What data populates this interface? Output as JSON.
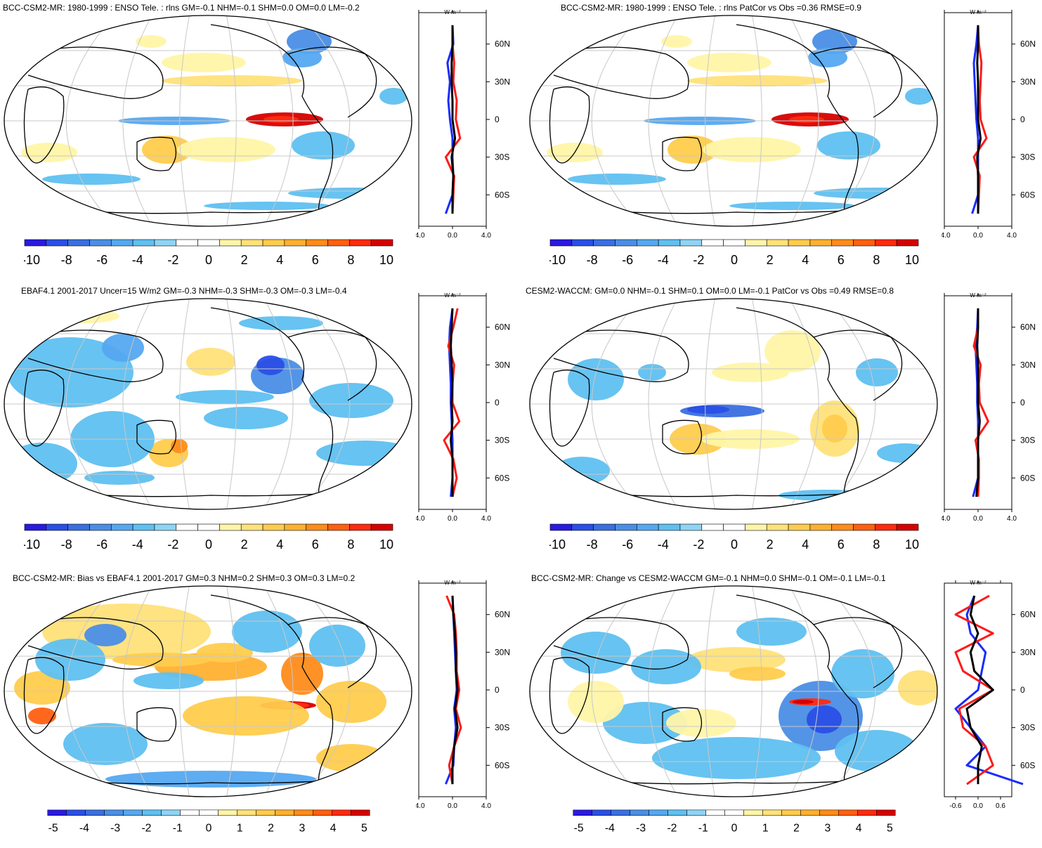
{
  "colors": [
    "#2a1ae0",
    "#2a4fe6",
    "#3a6fe0",
    "#4a8ee6",
    "#55a8f0",
    "#5fc0f0",
    "#8ed4f5",
    "#ffffff",
    "#ffffff",
    "#fff5a8",
    "#ffe27a",
    "#ffcc4d",
    "#ffb030",
    "#ff8c1a",
    "#ff6010",
    "#ff2a10",
    "#d60000"
  ],
  "panels": [
    {
      "id": "p1",
      "title": "BCC-CSM2-MR: 1980-1999 : ENSO Tele. : rlns GM=-0.1 NHM=-0.1 SHM=0.0 OM=0.0 LM=-0.2",
      "cbar_labels": [
        "-10",
        "-8",
        "-6",
        "-4",
        "-2",
        "0",
        "2",
        "4",
        "6",
        "8",
        "10"
      ],
      "x_ticks": [
        "-4.0",
        "0.0",
        "4.0"
      ],
      "lat_labels": [
        "60N",
        "30N",
        "0",
        "30S",
        "60S"
      ],
      "unit": "W m⁻²"
    },
    {
      "id": "p2",
      "title": "BCC-CSM2-MR: 1980-1999 : ENSO Tele. : rlns PatCor vs Obs =0.36 RMSE=0.9",
      "cbar_labels": [
        "-10",
        "-8",
        "-6",
        "-4",
        "-2",
        "0",
        "2",
        "4",
        "6",
        "8",
        "10"
      ],
      "x_ticks": [
        "-4.0",
        "0.0",
        "4.0"
      ],
      "lat_labels": [
        "60N",
        "30N",
        "0",
        "30S",
        "60S"
      ],
      "unit": "W m⁻²"
    },
    {
      "id": "p3",
      "title": "EBAF4.1 2001-2017 Uncer=15 W/m2 GM=-0.3 NHM=-0.3 SHM=-0.3 OM=-0.3 LM=-0.4",
      "cbar_labels": [
        "-10",
        "-8",
        "-6",
        "-4",
        "-2",
        "0",
        "2",
        "4",
        "6",
        "8",
        "10"
      ],
      "x_ticks": [
        "-4.0",
        "0.0",
        "4.0"
      ],
      "lat_labels": [
        "60N",
        "30N",
        "0",
        "30S",
        "60S"
      ],
      "unit": "W m⁻²"
    },
    {
      "id": "p4",
      "title": "CESM2-WACCM: GM=0.0 NHM=-0.1 SHM=0.1 OM=0.0 LM=-0.1 PatCor vs Obs =0.49 RMSE=0.8",
      "cbar_labels": [
        "-10",
        "-8",
        "-6",
        "-4",
        "-2",
        "0",
        "2",
        "4",
        "6",
        "8",
        "10"
      ],
      "x_ticks": [
        "-4.0",
        "0.0",
        "4.0"
      ],
      "lat_labels": [
        "60N",
        "30N",
        "0",
        "30S",
        "60S"
      ],
      "unit": "W m⁻²"
    },
    {
      "id": "p5",
      "title": "BCC-CSM2-MR: Bias vs EBAF4.1 2001-2017 GM=0.3 NHM=0.2 SHM=0.3 OM=0.3 LM=0.2",
      "cbar_labels": [
        "-5",
        "-4",
        "-3",
        "-2",
        "-1",
        "0",
        "1",
        "2",
        "3",
        "4",
        "5"
      ],
      "x_ticks": [
        "-4.0",
        "0.0",
        "4.0"
      ],
      "lat_labels": [
        "60N",
        "30N",
        "0",
        "30S",
        "60S"
      ],
      "unit": "W m⁻²"
    },
    {
      "id": "p6",
      "title": "BCC-CSM2-MR: Change vs CESM2-WACCM GM=-0.1 NHM=0.0 SHM=-0.1 OM=-0.1 LM=-0.1",
      "cbar_labels": [
        "-5",
        "-4",
        "-3",
        "-2",
        "-1",
        "0",
        "1",
        "2",
        "3",
        "4",
        "5"
      ],
      "x_ticks": [
        "-0.6",
        "0.0",
        "0.6"
      ],
      "lat_labels": [
        "60N",
        "30N",
        "0",
        "30S",
        "60S"
      ],
      "unit": "W m⁻²"
    }
  ],
  "chart_data": [
    {
      "type": "heatmap",
      "title": "BCC-CSM2-MR: 1980-1999 : ENSO Tele. : rlns GM=-0.1 NHM=-0.1 SHM=0.0 OM=0.0 LM=-0.2",
      "colorbar_range": [
        -10,
        10
      ],
      "zonal_mean": {
        "lat": [
          75,
          60,
          45,
          30,
          15,
          0,
          -15,
          -30,
          -45,
          -60,
          -75
        ],
        "xlim": [
          -4,
          4
        ],
        "series": [
          {
            "color": "blue",
            "values": [
              0,
              0.1,
              -0.6,
              -0.3,
              -0.5,
              -0.3,
              0,
              0,
              0.1,
              0,
              -0.8
            ]
          },
          {
            "color": "red",
            "values": [
              0,
              0,
              0.2,
              0.1,
              0.5,
              0.4,
              0.9,
              -0.8,
              0.2,
              0.1,
              0
            ]
          },
          {
            "color": "black",
            "values": [
              0,
              0,
              -0.1,
              -0.1,
              0,
              0,
              0.3,
              -0.1,
              0.1,
              0,
              0
            ]
          }
        ]
      }
    },
    {
      "type": "heatmap",
      "title": "BCC-CSM2-MR: 1980-1999 : ENSO Tele. : rlns PatCor vs Obs =0.36 RMSE=0.9",
      "colorbar_range": [
        -10,
        10
      ],
      "zonal_mean": {
        "lat": [
          75,
          60,
          45,
          30,
          15,
          0,
          -15,
          -30,
          -45,
          -60,
          -75
        ],
        "xlim": [
          -4,
          4
        ],
        "series": [
          {
            "color": "blue",
            "values": [
              0,
              -0.2,
              -0.5,
              -0.4,
              -0.3,
              -0.2,
              0,
              0,
              0,
              0,
              -0.7
            ]
          },
          {
            "color": "red",
            "values": [
              0,
              0.1,
              0.4,
              0.3,
              0.2,
              0.3,
              1.0,
              -0.5,
              0.2,
              0.1,
              0
            ]
          },
          {
            "color": "black",
            "values": [
              0,
              0,
              -0.1,
              0,
              0,
              0,
              0.3,
              -0.1,
              0,
              0,
              0
            ]
          }
        ]
      }
    },
    {
      "type": "heatmap",
      "title": "EBAF4.1 2001-2017 Uncer=15 W/m2 GM=-0.3 NHM=-0.3 SHM=-0.3 OM=-0.3 LM=-0.4",
      "colorbar_range": [
        -10,
        10
      ],
      "zonal_mean": {
        "lat": [
          75,
          60,
          45,
          30,
          15,
          0,
          -15,
          -30,
          -45,
          -60,
          -75
        ],
        "xlim": [
          -4,
          4
        ],
        "series": [
          {
            "color": "blue",
            "values": [
              0,
              -0.3,
              -0.4,
              -0.3,
              -0.2,
              -0.2,
              -0.1,
              0,
              0,
              0,
              -0.2
            ]
          },
          {
            "color": "red",
            "values": [
              0.6,
              0.1,
              -0.5,
              0.2,
              0,
              0,
              0.8,
              -1.0,
              0.1,
              0.5,
              0
            ]
          },
          {
            "color": "black",
            "values": [
              0,
              -0.1,
              -0.2,
              -0.1,
              0,
              -0.1,
              0,
              -0.2,
              0,
              0,
              0
            ]
          }
        ]
      }
    },
    {
      "type": "heatmap",
      "title": "CESM2-WACCM: GM=0.0 NHM=-0.1 SHM=0.1 OM=0.0 LM=-0.1 PatCor vs Obs =0.49 RMSE=0.8",
      "colorbar_range": [
        -10,
        10
      ],
      "zonal_mean": {
        "lat": [
          75,
          60,
          45,
          30,
          15,
          0,
          -15,
          -30,
          -45,
          -60,
          -75
        ],
        "xlim": [
          -4,
          4
        ],
        "series": [
          {
            "color": "blue",
            "values": [
              0,
              -0.1,
              -0.3,
              -0.2,
              -0.1,
              -0.1,
              0,
              0,
              0,
              0,
              -0.6
            ]
          },
          {
            "color": "red",
            "values": [
              0,
              0,
              -0.5,
              0.3,
              0.1,
              0.2,
              1.2,
              -0.3,
              0.1,
              0.1,
              0
            ]
          },
          {
            "color": "black",
            "values": [
              0,
              0,
              -0.1,
              0,
              0,
              0,
              0.2,
              0,
              0,
              0,
              -0.2
            ]
          }
        ]
      }
    },
    {
      "type": "heatmap",
      "title": "BCC-CSM2-MR: Bias vs EBAF4.1 2001-2017 GM=0.3 NHM=0.2 SHM=0.3 OM=0.3 LM=0.2",
      "colorbar_range": [
        -5,
        5
      ],
      "zonal_mean": {
        "lat": [
          75,
          60,
          45,
          30,
          15,
          0,
          -15,
          -30,
          -45,
          -60,
          -75
        ],
        "xlim": [
          -4,
          4
        ],
        "series": [
          {
            "color": "blue",
            "values": [
              0,
              0.1,
              0.2,
              0.3,
              0.4,
              0.5,
              0.2,
              0.4,
              0.2,
              0.1,
              -0.8
            ]
          },
          {
            "color": "red",
            "values": [
              -0.7,
              0.2,
              0.4,
              0.5,
              0.5,
              0.8,
              0.4,
              1.0,
              0.2,
              -0.4,
              0
            ]
          },
          {
            "color": "black",
            "values": [
              0,
              0.1,
              0.3,
              0.4,
              0.4,
              0.6,
              0.3,
              0.6,
              0.2,
              0,
              0
            ]
          }
        ]
      }
    },
    {
      "type": "heatmap",
      "title": "BCC-CSM2-MR: Change vs CESM2-WACCM GM=-0.1 NHM=0.0 SHM=-0.1 OM=-0.1 LM=-0.1",
      "colorbar_range": [
        -5,
        5
      ],
      "zonal_mean": {
        "lat": [
          75,
          60,
          45,
          30,
          15,
          0,
          -15,
          -30,
          -45,
          -60,
          -75
        ],
        "xlim": [
          -0.9,
          0.9
        ],
        "series": [
          {
            "color": "blue",
            "values": [
              -0.1,
              -0.3,
              -0.2,
              0.2,
              0.1,
              0,
              -0.6,
              -0.2,
              0.2,
              -0.3,
              1.2
            ]
          },
          {
            "color": "red",
            "values": [
              0.3,
              -0.6,
              0.4,
              -0.6,
              -0.4,
              0.4,
              -0.5,
              -0.4,
              0.2,
              0.4,
              -0.3
            ]
          },
          {
            "color": "black",
            "values": [
              -0.1,
              -0.2,
              0,
              -0.2,
              -0.1,
              0.4,
              -0.3,
              -0.2,
              0.1,
              0,
              0
            ]
          }
        ]
      }
    }
  ]
}
